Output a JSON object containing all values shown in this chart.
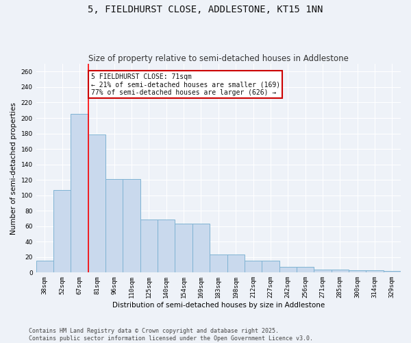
{
  "title": "5, FIELDHURST CLOSE, ADDLESTONE, KT15 1NN",
  "subtitle": "Size of property relative to semi-detached houses in Addlestone",
  "xlabel": "Distribution of semi-detached houses by size in Addlestone",
  "ylabel": "Number of semi-detached properties",
  "categories": [
    "38sqm",
    "52sqm",
    "67sqm",
    "81sqm",
    "96sqm",
    "110sqm",
    "125sqm",
    "140sqm",
    "154sqm",
    "169sqm",
    "183sqm",
    "198sqm",
    "212sqm",
    "227sqm",
    "242sqm",
    "256sqm",
    "271sqm",
    "285sqm",
    "300sqm",
    "314sqm",
    "329sqm"
  ],
  "values": [
    15,
    107,
    205,
    179,
    121,
    121,
    69,
    69,
    63,
    63,
    23,
    23,
    15,
    15,
    7,
    7,
    4,
    4,
    3,
    3,
    2
  ],
  "bar_color": "#c9d9ed",
  "bar_edge_color": "#7fb3d3",
  "red_line_index": 3,
  "annotation_text": "5 FIELDHURST CLOSE: 71sqm\n← 21% of semi-detached houses are smaller (169)\n77% of semi-detached houses are larger (626) →",
  "annotation_box_color": "#ffffff",
  "annotation_box_edge": "#cc0000",
  "ylim": [
    0,
    270
  ],
  "yticks": [
    0,
    20,
    40,
    60,
    80,
    100,
    120,
    140,
    160,
    180,
    200,
    220,
    240,
    260
  ],
  "footer": "Contains HM Land Registry data © Crown copyright and database right 2025.\nContains public sector information licensed under the Open Government Licence v3.0.",
  "background_color": "#eef2f8",
  "plot_background": "#eef2f8",
  "grid_color": "#ffffff",
  "title_fontsize": 10,
  "subtitle_fontsize": 8.5,
  "tick_fontsize": 6.5,
  "label_fontsize": 7.5,
  "footer_fontsize": 6,
  "annot_fontsize": 7
}
